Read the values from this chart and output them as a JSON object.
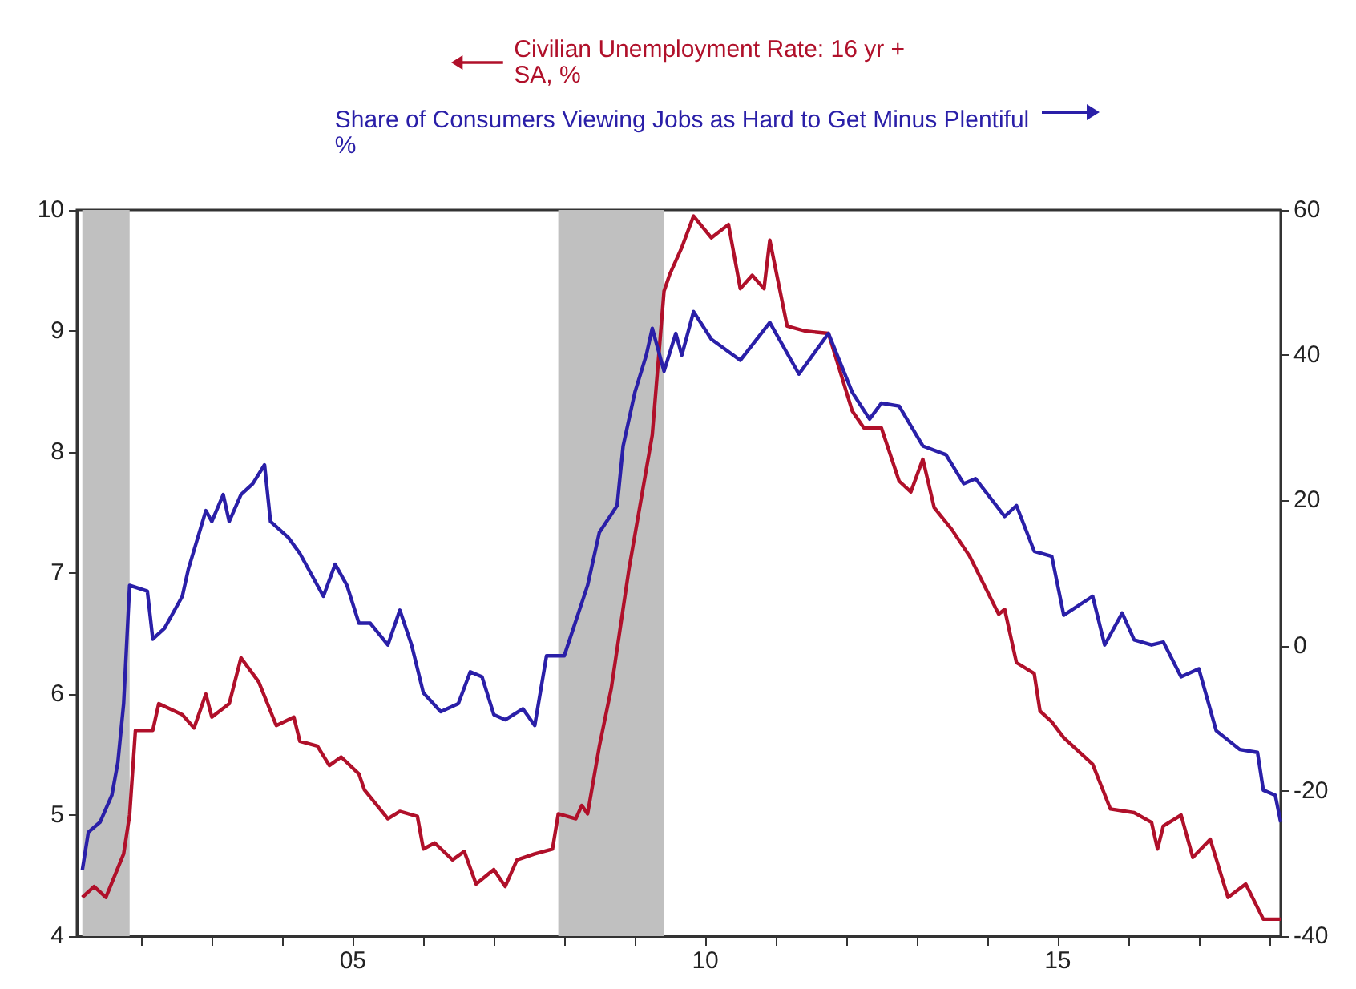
{
  "chart_data": {
    "type": "line",
    "xlim": [
      "2001-02",
      "2018-03"
    ],
    "xticks": [
      {
        "value": "2002",
        "label": null
      },
      {
        "value": "2003",
        "label": null
      },
      {
        "value": "2004",
        "label": null
      },
      {
        "value": "2005",
        "label": "05"
      },
      {
        "value": "2006",
        "label": null
      },
      {
        "value": "2007",
        "label": null
      },
      {
        "value": "2008",
        "label": null
      },
      {
        "value": "2009",
        "label": null
      },
      {
        "value": "2010",
        "label": "10"
      },
      {
        "value": "2011",
        "label": null
      },
      {
        "value": "2012",
        "label": null
      },
      {
        "value": "2013",
        "label": null
      },
      {
        "value": "2014",
        "label": null
      },
      {
        "value": "2015",
        "label": "15"
      },
      {
        "value": "2016",
        "label": null
      },
      {
        "value": "2017",
        "label": null
      },
      {
        "value": "2018",
        "label": null
      }
    ],
    "ylim": [
      4,
      10
    ],
    "yticks": [
      4,
      5,
      6,
      7,
      8,
      9,
      10
    ],
    "y2lim": [
      -40,
      60
    ],
    "y2ticks": [
      -40,
      -20,
      0,
      20,
      40,
      60
    ],
    "legend": "top",
    "grid": false,
    "bands": [
      {
        "axis": "x",
        "from": "2001-03",
        "to": "2001-11",
        "color": "#c0c0c0"
      },
      {
        "axis": "x",
        "from": "2007-12",
        "to": "2009-06",
        "color": "#c0c0c0"
      }
    ],
    "series": [
      {
        "name": "Civilian Unemployment Rate: 16 yr +\nSA, %",
        "color": "#b0102a",
        "axis": "y",
        "x": [
          "2001-03",
          "2001-05",
          "2001-07",
          "2001-10",
          "2001-11",
          "2001-12",
          "2002-03",
          "2002-04",
          "2002-08",
          "2002-10",
          "2002-12",
          "2003-01",
          "2003-04",
          "2003-06",
          "2003-09",
          "2003-12",
          "2004-03",
          "2004-04",
          "2004-07",
          "2004-09",
          "2004-11",
          "2005-02",
          "2005-03",
          "2005-07",
          "2005-09",
          "2005-12",
          "2006-01",
          "2006-03",
          "2006-06",
          "2006-08",
          "2006-10",
          "2007-01",
          "2007-03",
          "2007-05",
          "2007-08",
          "2007-11",
          "2007-12",
          "2008-03",
          "2008-04",
          "2008-05",
          "2008-07",
          "2008-09",
          "2008-12",
          "2009-04",
          "2009-06",
          "2009-07",
          "2009-09",
          "2009-11",
          "2010-02",
          "2010-05",
          "2010-07",
          "2010-09",
          "2010-11",
          "2010-12",
          "2011-03",
          "2011-06",
          "2011-10",
          "2012-02",
          "2012-04",
          "2012-07",
          "2012-10",
          "2012-12",
          "2013-02",
          "2013-04",
          "2013-07",
          "2013-10",
          "2014-03",
          "2014-04",
          "2014-06",
          "2014-09",
          "2014-10",
          "2014-12",
          "2015-02",
          "2015-07",
          "2015-10",
          "2016-02",
          "2016-05",
          "2016-06",
          "2016-07",
          "2016-10",
          "2016-12",
          "2017-03",
          "2017-06",
          "2017-09",
          "2017-12",
          "2018-03"
        ],
        "values": [
          4.32,
          4.41,
          4.32,
          4.68,
          5.0,
          5.7,
          5.7,
          5.92,
          5.83,
          5.72,
          6.0,
          5.81,
          5.92,
          6.3,
          6.1,
          5.74,
          5.81,
          5.61,
          5.57,
          5.41,
          5.48,
          5.34,
          5.21,
          4.97,
          5.03,
          4.99,
          4.72,
          4.77,
          4.63,
          4.7,
          4.43,
          4.55,
          4.41,
          4.63,
          4.68,
          4.72,
          5.01,
          4.97,
          5.08,
          5.01,
          5.57,
          6.05,
          7.03,
          8.14,
          9.33,
          9.47,
          9.69,
          9.95,
          9.77,
          9.88,
          9.35,
          9.46,
          9.35,
          9.75,
          9.04,
          9.0,
          8.98,
          8.34,
          8.2,
          8.2,
          7.76,
          7.67,
          7.94,
          7.54,
          7.36,
          7.14,
          6.66,
          6.7,
          6.26,
          6.17,
          5.86,
          5.77,
          5.64,
          5.42,
          5.05,
          5.02,
          4.94,
          4.72,
          4.91,
          5.0,
          4.65,
          4.8,
          4.32,
          4.43,
          4.14,
          4.14
        ]
      },
      {
        "name": "Share of Consumers Viewing Jobs as Hard to Get Minus Plentiful\n%",
        "color": "#2a1fa8",
        "axis": "y2",
        "x": [
          "2001-03",
          "2001-04",
          "2001-06",
          "2001-08",
          "2001-09",
          "2001-10",
          "2001-11",
          "2002-02",
          "2002-03",
          "2002-05",
          "2002-08",
          "2002-09",
          "2002-12",
          "2003-01",
          "2003-03",
          "2003-04",
          "2003-06",
          "2003-08",
          "2003-10",
          "2003-11",
          "2004-02",
          "2004-04",
          "2004-08",
          "2004-10",
          "2004-12",
          "2005-02",
          "2005-04",
          "2005-07",
          "2005-09",
          "2005-11",
          "2006-01",
          "2006-04",
          "2006-07",
          "2006-09",
          "2006-11",
          "2007-01",
          "2007-03",
          "2007-06",
          "2007-08",
          "2007-10",
          "2008-01",
          "2008-05",
          "2008-07",
          "2008-10",
          "2008-11",
          "2009-01",
          "2009-03",
          "2009-04",
          "2009-06",
          "2009-08",
          "2009-09",
          "2009-11",
          "2010-02",
          "2010-07",
          "2010-12",
          "2011-05",
          "2011-10",
          "2012-02",
          "2012-05",
          "2012-07",
          "2012-10",
          "2013-02",
          "2013-06",
          "2013-09",
          "2013-11",
          "2014-04",
          "2014-06",
          "2014-09",
          "2014-12",
          "2015-02",
          "2015-07",
          "2015-09",
          "2015-12",
          "2016-02",
          "2016-05",
          "2016-07",
          "2016-10",
          "2017-01",
          "2017-04",
          "2017-08",
          "2017-11",
          "2017-12",
          "2018-02",
          "2018-03"
        ],
        "values": [
          -30.9,
          -25.7,
          -24.3,
          -20.6,
          -16.1,
          -8.0,
          8.3,
          7.5,
          0.9,
          2.4,
          6.8,
          10.5,
          18.6,
          17.1,
          20.8,
          17.1,
          20.8,
          22.3,
          24.9,
          17.1,
          14.9,
          12.7,
          6.8,
          11.2,
          8.3,
          3.1,
          3.1,
          0.1,
          4.9,
          0.1,
          -6.5,
          -9.1,
          -8.0,
          -3.6,
          -4.3,
          -9.5,
          -10.2,
          -8.7,
          -11.0,
          -1.4,
          -1.4,
          8.3,
          15.6,
          19.3,
          27.5,
          34.9,
          40.0,
          43.7,
          37.8,
          43.0,
          40.0,
          46.0,
          42.2,
          39.3,
          44.5,
          37.4,
          43.0,
          34.9,
          31.2,
          33.4,
          33.0,
          27.5,
          26.3,
          22.3,
          23.0,
          17.8,
          19.3,
          13.0,
          12.3,
          4.2,
          6.8,
          0.1,
          4.5,
          0.8,
          0.1,
          0.5,
          -4.3,
          -3.2,
          -11.7,
          -14.3,
          -14.7,
          -19.9,
          -20.6,
          -24.3
        ]
      }
    ]
  }
}
